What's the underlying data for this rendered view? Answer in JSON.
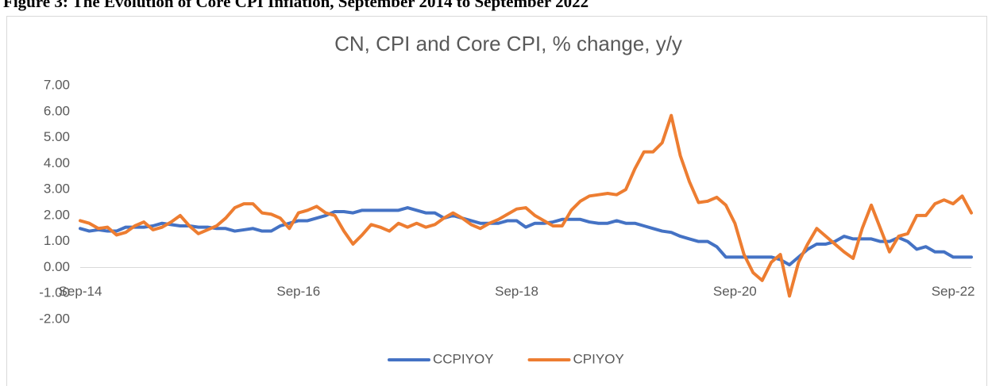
{
  "chart_data": {
    "type": "line",
    "caption": "Figure 3: The Evolution of Core CPI Inflation, September 2014 to September 2022",
    "title": "CN, CPI and Core CPI, % change, y/y",
    "categories": [
      "Sep-14",
      null,
      null,
      null,
      null,
      null,
      null,
      null,
      null,
      null,
      null,
      null,
      null,
      null,
      null,
      null,
      null,
      null,
      null,
      null,
      null,
      null,
      null,
      null,
      "Sep-16",
      null,
      null,
      null,
      null,
      null,
      null,
      null,
      null,
      null,
      null,
      null,
      null,
      null,
      null,
      null,
      null,
      null,
      null,
      null,
      null,
      null,
      null,
      null,
      "Sep-18",
      null,
      null,
      null,
      null,
      null,
      null,
      null,
      null,
      null,
      null,
      null,
      null,
      null,
      null,
      null,
      null,
      null,
      null,
      null,
      null,
      null,
      null,
      null,
      "Sep-20",
      null,
      null,
      null,
      null,
      null,
      null,
      null,
      null,
      null,
      null,
      null,
      null,
      null,
      null,
      null,
      null,
      null,
      null,
      null,
      null,
      null,
      null,
      null,
      "Sep-22",
      null,
      null
    ],
    "series": [
      {
        "name": "CCPIYOY",
        "color": "#4472c4",
        "values": [
          1.5,
          1.4,
          1.45,
          1.4,
          1.4,
          1.55,
          1.55,
          1.55,
          1.6,
          1.7,
          1.65,
          1.6,
          1.6,
          1.55,
          1.55,
          1.5,
          1.5,
          1.4,
          1.45,
          1.5,
          1.4,
          1.4,
          1.6,
          1.7,
          1.8,
          1.8,
          1.9,
          2.0,
          2.15,
          2.15,
          2.1,
          2.2,
          2.2,
          2.2,
          2.2,
          2.2,
          2.3,
          2.2,
          2.1,
          2.1,
          1.9,
          2.0,
          1.9,
          1.8,
          1.7,
          1.7,
          1.7,
          1.8,
          1.8,
          1.55,
          1.7,
          1.7,
          1.75,
          1.85,
          1.85,
          1.85,
          1.75,
          1.7,
          1.7,
          1.8,
          1.7,
          1.7,
          1.6,
          1.5,
          1.4,
          1.35,
          1.2,
          1.1,
          1.0,
          1.0,
          0.8,
          0.4,
          0.4,
          0.4,
          0.4,
          0.4,
          0.4,
          0.3,
          0.1,
          0.4,
          0.7,
          0.9,
          0.9,
          1.0,
          1.2,
          1.1,
          1.1,
          1.1,
          1.0,
          1.0,
          1.15,
          1.0,
          0.7,
          0.8,
          0.6,
          0.6,
          0.4,
          0.4,
          0.4
        ]
      },
      {
        "name": "CPIYOY",
        "color": "#ed7d31",
        "values": [
          1.8,
          1.7,
          1.5,
          1.55,
          1.25,
          1.35,
          1.6,
          1.75,
          1.45,
          1.55,
          1.75,
          2.0,
          1.6,
          1.3,
          1.45,
          1.6,
          1.9,
          2.3,
          2.45,
          2.45,
          2.1,
          2.05,
          1.9,
          1.5,
          2.1,
          2.2,
          2.35,
          2.1,
          2.0,
          1.4,
          0.9,
          1.25,
          1.65,
          1.55,
          1.4,
          1.7,
          1.55,
          1.7,
          1.55,
          1.65,
          1.9,
          2.1,
          1.9,
          1.65,
          1.5,
          1.7,
          1.85,
          2.05,
          2.25,
          2.3,
          2.0,
          1.8,
          1.6,
          1.6,
          2.2,
          2.55,
          2.75,
          2.8,
          2.85,
          2.8,
          3.0,
          3.8,
          4.45,
          4.45,
          4.8,
          5.85,
          4.3,
          3.3,
          2.5,
          2.55,
          2.7,
          2.4,
          1.7,
          0.5,
          -0.2,
          -0.5,
          0.2,
          0.5,
          -1.1,
          0.2,
          0.9,
          1.5,
          1.2,
          0.9,
          0.6,
          0.35,
          1.5,
          2.4,
          1.5,
          0.6,
          1.2,
          1.3,
          2.0,
          2.0,
          2.45,
          2.6,
          2.45,
          2.75,
          2.1
        ]
      }
    ],
    "ylim": [
      -2,
      7
    ],
    "yticks": [
      {
        "value": -2,
        "label": "-2.00"
      },
      {
        "value": -1,
        "label": "-1.00"
      },
      {
        "value": 0,
        "label": "0.00"
      },
      {
        "value": 1,
        "label": "1.00"
      },
      {
        "value": 2,
        "label": "2.00"
      },
      {
        "value": 3,
        "label": "3.00"
      },
      {
        "value": 4,
        "label": "4.00"
      },
      {
        "value": 5,
        "label": "5.00"
      },
      {
        "value": 6,
        "label": "6.00"
      },
      {
        "value": 7,
        "label": "7.00"
      }
    ],
    "grid": false,
    "legend": "bottom"
  }
}
